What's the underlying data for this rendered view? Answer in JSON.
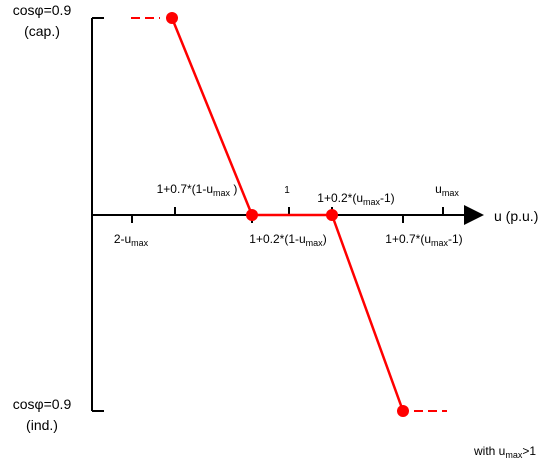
{
  "y_axis": {
    "top_label": {
      "line1": "cosφ=0.9",
      "line2": "(cap.)"
    },
    "bottom_label": {
      "line1": "cosφ=0.9",
      "line2": "(ind.)"
    }
  },
  "x_axis": {
    "label": "u (p.u.)",
    "ticks_above": [
      {
        "base": "1+0.7*(1-u",
        "sub": "max",
        "tail": " )"
      },
      {
        "base": "1",
        "sub": "",
        "tail": ""
      },
      {
        "base": "1+0.2*(u",
        "sub": "max",
        "tail": "-1)"
      },
      {
        "base": "u",
        "sub": "max",
        "tail": ""
      }
    ],
    "ticks_below": [
      {
        "base": "2-u",
        "sub": "max",
        "tail": ""
      },
      {
        "base": "1+0.2*(1-u",
        "sub": "max",
        "tail": ")"
      },
      {
        "base": "1+0.7*(u",
        "sub": "max",
        "tail": "-1)"
      }
    ]
  },
  "footnote": {
    "base": "with u",
    "sub": "max",
    "tail": ">1"
  },
  "colors": {
    "curve": "#ff0000",
    "axis": "#000000"
  }
}
